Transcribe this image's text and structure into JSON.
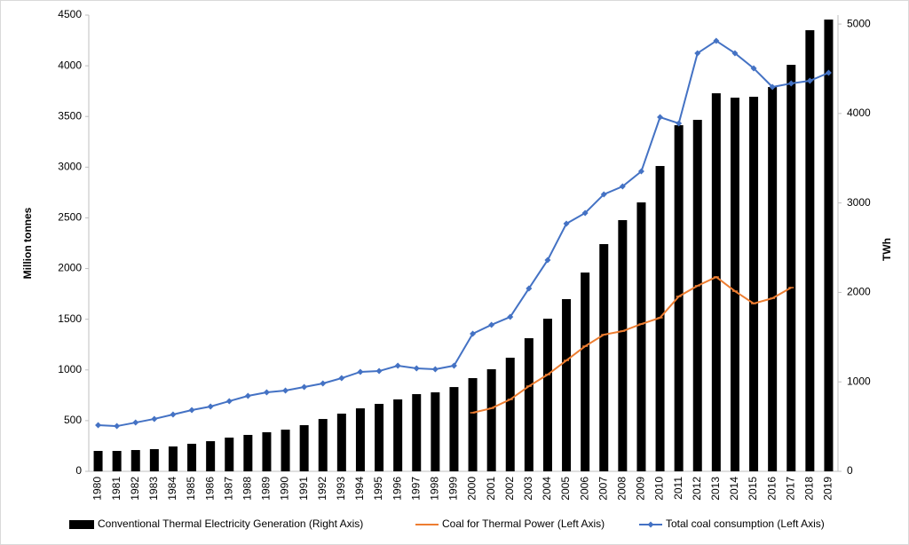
{
  "chart_data": {
    "type": "bar",
    "y_label": "Million  tonnes",
    "y2_label": "TWh",
    "categories": [
      "1980",
      "1981",
      "1982",
      "1983",
      "1984",
      "1985",
      "1986",
      "1987",
      "1988",
      "1989",
      "1990",
      "1991",
      "1992",
      "1993",
      "1994",
      "1995",
      "1996",
      "1997",
      "1998",
      "1999",
      "2000",
      "2001",
      "2002",
      "2003",
      "2004",
      "2005",
      "2006",
      "2007",
      "2008",
      "2009",
      "2010",
      "2011",
      "2012",
      "2013",
      "2014",
      "2015",
      "2016",
      "2017",
      "2018",
      "2019"
    ],
    "series": [
      {
        "name": "Conventional Thermal Electricity Generation (Right Axis)",
        "type": "bar",
        "axis": "y2",
        "color": "#000000",
        "values": [
          228,
          228,
          238,
          248,
          278,
          308,
          337,
          377,
          407,
          437,
          466,
          516,
          585,
          645,
          704,
          754,
          804,
          863,
          883,
          942,
          1042,
          1141,
          1270,
          1488,
          1706,
          1925,
          2222,
          2540,
          2808,
          3006,
          3413,
          3869,
          3929,
          4226,
          4177,
          4187,
          4296,
          4544,
          4931,
          5050
        ]
      },
      {
        "name": "Coal for Thermal Power (Left Axis)",
        "type": "line",
        "axis": "y",
        "color": "#ed7d31",
        "marker": "dash",
        "values": [
          null,
          null,
          null,
          null,
          null,
          null,
          null,
          null,
          null,
          null,
          null,
          null,
          null,
          null,
          null,
          null,
          null,
          null,
          null,
          null,
          578,
          622,
          709,
          840,
          954,
          1094,
          1234,
          1348,
          1383,
          1453,
          1515,
          1725,
          1830,
          1917,
          1777,
          1655,
          1707,
          1812,
          null,
          null
        ]
      },
      {
        "name": "Total coal consumption (Left Axis)",
        "type": "line",
        "axis": "y",
        "color": "#4472c4",
        "marker": "diamond",
        "values": [
          455,
          446,
          481,
          517,
          560,
          604,
          639,
          692,
          744,
          779,
          797,
          832,
          867,
          919,
          981,
          989,
          1042,
          1016,
          1007,
          1042,
          1357,
          1445,
          1523,
          1804,
          2084,
          2443,
          2548,
          2732,
          2810,
          2959,
          3493,
          3432,
          4124,
          4246,
          4124,
          3975,
          3791,
          3826,
          3852,
          3931
        ]
      }
    ],
    "ylim": [
      0,
      4500
    ],
    "yticks": [
      0,
      500,
      1000,
      1500,
      2000,
      2500,
      3000,
      3500,
      4000,
      4500
    ],
    "y2lim": [
      0,
      5100
    ],
    "y2ticks": [
      0,
      1000,
      2000,
      3000,
      4000,
      5000
    ],
    "legend": "bottom"
  }
}
